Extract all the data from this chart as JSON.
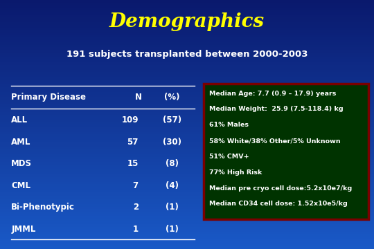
{
  "title": "Demographics",
  "subtitle": "191 subjects transplanted between 2000-2003",
  "bg_color_top": "#0a1a6e",
  "bg_color_bottom": "#1a5ac8",
  "title_color": "#ffff00",
  "subtitle_color": "#ffffff",
  "table_header": [
    "Primary Disease",
    "N",
    "(%)"
  ],
  "table_rows": [
    [
      "ALL",
      "109",
      "(57)"
    ],
    [
      "AML",
      "57",
      "(30)"
    ],
    [
      "MDS",
      "15",
      "(8)"
    ],
    [
      "CML",
      "7",
      "(4)"
    ],
    [
      "Bi-Phenotypic",
      "2",
      "(1)"
    ],
    [
      "JMML",
      "1",
      "(1)"
    ]
  ],
  "table_text_color": "#ffffff",
  "box_bg_color": "#003300",
  "box_border_color": "#7a0000",
  "box_text_color": "#ffffff",
  "box_lines": [
    "Median Age: 7.7 (0.9 – 17.9) years",
    "Median Weight:  25.9 (7.5-118.4) kg",
    "61% Males",
    "58% White/38% Other/5% Unknown",
    "51% CMV+",
    "77% High Risk",
    "Median pre cryo cell dose:5.2x10e7/kg",
    "Median CD34 cell dose: 1.52x10e5/kg"
  ],
  "fig_width": 5.4,
  "fig_height": 3.6,
  "dpi": 100
}
